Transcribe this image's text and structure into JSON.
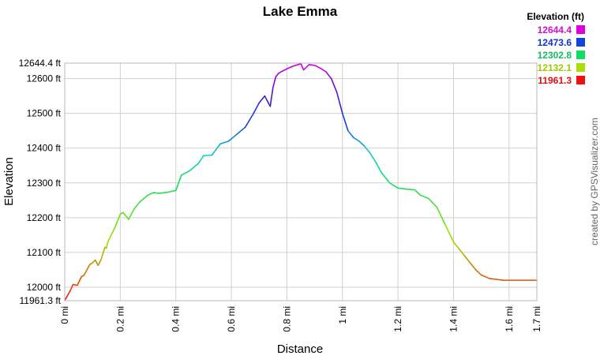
{
  "chart_data": {
    "type": "line",
    "title": "Lake Emma",
    "xlabel": "Distance",
    "ylabel": "Elevation",
    "xlim": [
      0,
      1.7
    ],
    "ylim": [
      11961.3,
      12644.4
    ],
    "x_ticks": [
      {
        "v": 0,
        "label": "0 mi"
      },
      {
        "v": 0.2,
        "label": "0.2 mi"
      },
      {
        "v": 0.4,
        "label": "0.4 mi"
      },
      {
        "v": 0.6,
        "label": "0.6 mi"
      },
      {
        "v": 0.8,
        "label": "0.8 mi"
      },
      {
        "v": 1.0,
        "label": "1 mi"
      },
      {
        "v": 1.2,
        "label": "1.2 mi"
      },
      {
        "v": 1.4,
        "label": "1.4 mi"
      },
      {
        "v": 1.6,
        "label": "1.6 mi"
      },
      {
        "v": 1.7,
        "label": "1.7 mi"
      }
    ],
    "y_ticks": [
      {
        "v": 11961.3,
        "label": "11961.3 ft"
      },
      {
        "v": 12000,
        "label": "12000 ft"
      },
      {
        "v": 12100,
        "label": "12100 ft"
      },
      {
        "v": 12200,
        "label": "12200 ft"
      },
      {
        "v": 12300,
        "label": "12300 ft"
      },
      {
        "v": 12400,
        "label": "12400 ft"
      },
      {
        "v": 12500,
        "label": "12500 ft"
      },
      {
        "v": 12600,
        "label": "12600 ft"
      },
      {
        "v": 12644.4,
        "label": "12644.4 ft"
      }
    ],
    "grid": true,
    "legend": {
      "title": "Elevation (ft)",
      "placement": "top-right",
      "entries": [
        {
          "label": "12644.4",
          "color": "#cc11cc",
          "swatch": "#dd00dd"
        },
        {
          "label": "12473.6",
          "color": "#1133cc",
          "swatch": "#1144dd"
        },
        {
          "label": "12302.8",
          "color": "#11bb66",
          "swatch": "#11dd66"
        },
        {
          "label": "12132.1",
          "color": "#99cc00",
          "swatch": "#aadd00"
        },
        {
          "label": "11961.3",
          "color": "#dd1111",
          "swatch": "#ee1111"
        }
      ]
    },
    "color_scale": [
      {
        "v": 11961.3,
        "color": "#ee1111"
      },
      {
        "v": 12132.1,
        "color": "#aadd00"
      },
      {
        "v": 12302.8,
        "color": "#11dd66"
      },
      {
        "v": 12388.0,
        "color": "#11cccc"
      },
      {
        "v": 12473.6,
        "color": "#1144dd"
      },
      {
        "v": 12560.0,
        "color": "#5511cc"
      },
      {
        "v": 12644.4,
        "color": "#dd00dd"
      }
    ],
    "series": [
      {
        "x": [
          0,
          0.02,
          0.03,
          0.045,
          0.06,
          0.07,
          0.09,
          0.1,
          0.11,
          0.12,
          0.13,
          0.145,
          0.15,
          0.155,
          0.17,
          0.18,
          0.2,
          0.21,
          0.23,
          0.25,
          0.27,
          0.3,
          0.32,
          0.34,
          0.37,
          0.4,
          0.42,
          0.45,
          0.48,
          0.5,
          0.53,
          0.56,
          0.59,
          0.62,
          0.65,
          0.68,
          0.7,
          0.72,
          0.74,
          0.75,
          0.76,
          0.765,
          0.77,
          0.78,
          0.8,
          0.82,
          0.84,
          0.85,
          0.86,
          0.88,
          0.9,
          0.92,
          0.94,
          0.96,
          0.98,
          1.0,
          1.02,
          1.04,
          1.06,
          1.08,
          1.1,
          1.12,
          1.14,
          1.17,
          1.2,
          1.23,
          1.26,
          1.28,
          1.31,
          1.34,
          1.37,
          1.4,
          1.42,
          1.44,
          1.46,
          1.48,
          1.5,
          1.53,
          1.56,
          1.58,
          1.61,
          1.64,
          1.66,
          1.68,
          1.7
        ],
        "y": [
          11962,
          11990,
          12008,
          12005,
          12030,
          12035,
          12065,
          12070,
          12078,
          12063,
          12078,
          12115,
          12112,
          12130,
          12155,
          12170,
          12210,
          12215,
          12195,
          12225,
          12245,
          12265,
          12272,
          12270,
          12273,
          12278,
          12322,
          12335,
          12355,
          12378,
          12380,
          12412,
          12420,
          12440,
          12460,
          12500,
          12530,
          12550,
          12520,
          12575,
          12605,
          12610,
          12615,
          12620,
          12628,
          12635,
          12640,
          12643,
          12625,
          12640,
          12638,
          12630,
          12620,
          12600,
          12560,
          12500,
          12450,
          12430,
          12420,
          12405,
          12385,
          12360,
          12330,
          12300,
          12285,
          12282,
          12280,
          12265,
          12255,
          12230,
          12180,
          12130,
          12110,
          12090,
          12070,
          12050,
          12035,
          12025,
          12022,
          12020,
          12020,
          12020,
          12020,
          12020,
          12020
        ]
      }
    ],
    "credit": "created by GPSVisualizer.com"
  }
}
